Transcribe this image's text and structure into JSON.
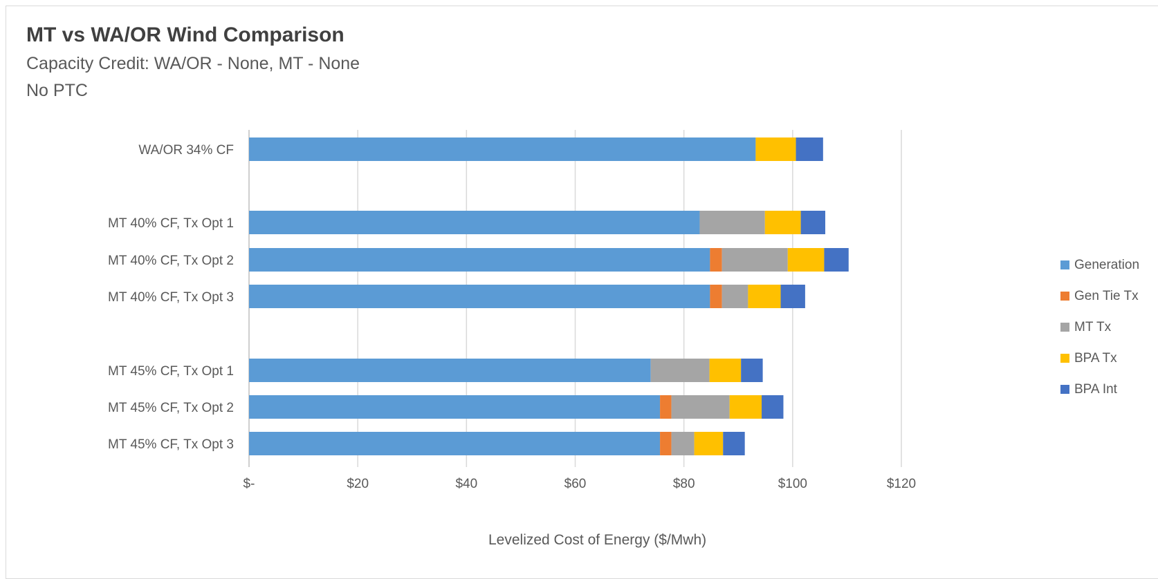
{
  "chart_data": {
    "type": "bar",
    "orientation": "horizontal",
    "stacked": true,
    "title": "MT vs WA/OR Wind Comparison",
    "subtitle_lines": [
      "Capacity Credit: WA/OR - None, MT - None",
      "No PTC"
    ],
    "xlabel": "Levelized Cost of Energy ($/Mwh)",
    "xlim": [
      0,
      120
    ],
    "xticks": [
      0,
      20,
      40,
      60,
      80,
      100,
      120
    ],
    "xtick_labels": [
      "$-",
      "$20",
      "$40",
      "$60",
      "$80",
      "$100",
      "$120"
    ],
    "grid": "vertical",
    "legend_position": "right",
    "categories": [
      "WA/OR 34% CF",
      "MT 40% CF, Tx Opt 1",
      "MT 40% CF, Tx Opt 2",
      "MT 40% CF, Tx Opt 3",
      "MT 45% CF, Tx Opt 1",
      "MT 45% CF, Tx Opt 2",
      "MT 45% CF, Tx Opt 3"
    ],
    "series": [
      {
        "name": "Generation",
        "color": "#5b9bd5",
        "values": [
          93.2,
          82.9,
          84.8,
          84.8,
          73.9,
          75.6,
          75.6
        ]
      },
      {
        "name": "Gen Tie Tx",
        "color": "#ed7d31",
        "values": [
          0,
          0,
          2.2,
          2.2,
          0,
          2.1,
          2.1
        ]
      },
      {
        "name": "MT Tx",
        "color": "#a5a5a5",
        "values": [
          0,
          12.0,
          12.1,
          4.8,
          10.8,
          10.7,
          4.2
        ]
      },
      {
        "name": "BPA Tx",
        "color": "#ffc000",
        "values": [
          7.4,
          6.6,
          6.7,
          6.0,
          5.8,
          5.9,
          5.3
        ]
      },
      {
        "name": "BPA Int",
        "color": "#4472c4",
        "values": [
          5.0,
          4.5,
          4.5,
          4.5,
          4.0,
          4.0,
          4.0
        ]
      }
    ]
  }
}
